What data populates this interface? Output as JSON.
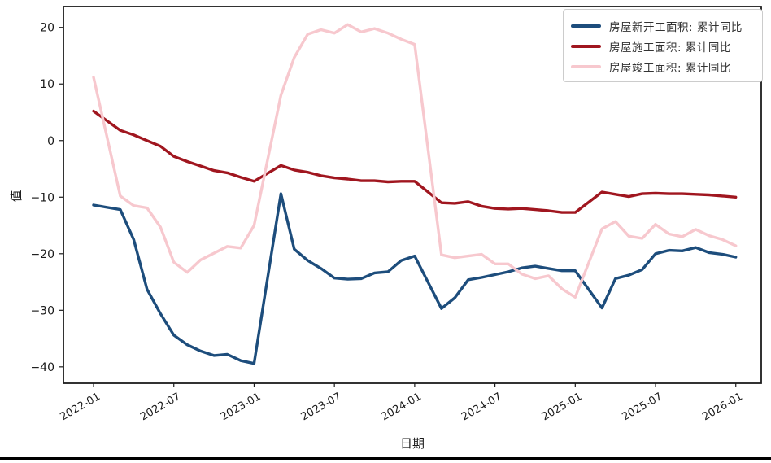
{
  "chart_data": {
    "type": "line",
    "title": "",
    "xlabel": "日期",
    "ylabel": "值",
    "grid": false,
    "legend_position": "upper right",
    "x_tick_labels": [
      "2022-01",
      "2022-07",
      "2023-01",
      "2023-07",
      "2024-01",
      "2024-07",
      "2025-01",
      "2025-07",
      "2026-01"
    ],
    "y_tick_values": [
      20,
      10,
      0,
      -10,
      -20,
      -30,
      -40
    ],
    "xlim_dates": [
      "2021-10-23",
      "2026-03-09"
    ],
    "ylim": [
      -42.9,
      23.7
    ],
    "x_dates": [
      "2022-01",
      "2022-03",
      "2022-04",
      "2022-05",
      "2022-06",
      "2022-07",
      "2022-08",
      "2022-09",
      "2022-10",
      "2022-11",
      "2022-12",
      "2023-01",
      "2023-03",
      "2023-04",
      "2023-05",
      "2023-06",
      "2023-07",
      "2023-08",
      "2023-09",
      "2023-10",
      "2023-11",
      "2023-12",
      "2024-01",
      "2024-03",
      "2024-04",
      "2024-05",
      "2024-06",
      "2024-07",
      "2024-08",
      "2024-09",
      "2024-10",
      "2024-11",
      "2024-12",
      "2025-01",
      "2025-03",
      "2025-04",
      "2025-05",
      "2025-06",
      "2025-07",
      "2025-08",
      "2025-09",
      "2025-10",
      "2025-11",
      "2025-12",
      "2026-01"
    ],
    "series": [
      {
        "name": "房屋新开工面积: 累计同比",
        "color": "#1d4d7c",
        "values": [
          -11.4,
          -12.2,
          -17.5,
          -26.3,
          -30.6,
          -34.4,
          -36.1,
          -37.2,
          -38.0,
          -37.8,
          -38.9,
          -39.4,
          -9.4,
          -19.2,
          -21.2,
          -22.6,
          -24.3,
          -24.5,
          -24.4,
          -23.4,
          -23.2,
          -21.2,
          -20.4,
          -29.7,
          -27.8,
          -24.6,
          -24.2,
          -23.7,
          -23.2,
          -22.5,
          -22.2,
          -22.6,
          -23.0,
          -23.0,
          -29.6,
          -24.4,
          -23.8,
          -22.8,
          -20.0,
          -19.4,
          -19.5,
          -18.9,
          -19.8,
          -20.1,
          -20.6
        ]
      },
      {
        "name": "房屋施工面积: 累计同比",
        "color": "#a0161f",
        "values": [
          5.2,
          1.8,
          1.0,
          0.0,
          -1.0,
          -2.8,
          -3.7,
          -4.5,
          -5.3,
          -5.7,
          -6.5,
          -7.2,
          -4.4,
          -5.2,
          -5.6,
          -6.2,
          -6.6,
          -6.8,
          -7.1,
          -7.1,
          -7.3,
          -7.2,
          -7.2,
          -11.0,
          -11.1,
          -10.8,
          -11.6,
          -12.0,
          -12.1,
          -12.0,
          -12.2,
          -12.4,
          -12.7,
          -12.7,
          -9.1,
          -9.5,
          -9.9,
          -9.4,
          -9.3,
          -9.4,
          -9.4,
          -9.5,
          -9.6,
          -9.8,
          -10.0
        ]
      },
      {
        "name": "房屋竣工面积: 累计同比",
        "color": "#f7c8ce",
        "values": [
          11.2,
          -9.8,
          -11.5,
          -11.9,
          -15.3,
          -21.5,
          -23.3,
          -21.1,
          -19.9,
          -18.7,
          -19.0,
          -15.0,
          8.0,
          14.7,
          18.8,
          19.6,
          19.0,
          20.5,
          19.2,
          19.8,
          19.0,
          17.9,
          17.0,
          -20.2,
          -20.7,
          -20.4,
          -20.1,
          -21.8,
          -21.8,
          -23.6,
          -24.4,
          -23.9,
          -26.2,
          -27.7,
          -15.6,
          -14.3,
          -16.9,
          -17.3,
          -14.8,
          -16.5,
          -17.0,
          -15.7,
          -16.8,
          -17.5,
          -18.6
        ]
      }
    ]
  }
}
